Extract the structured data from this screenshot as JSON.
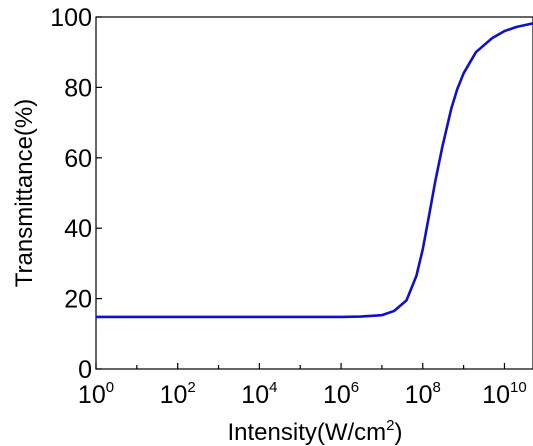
{
  "chart_data": {
    "type": "line",
    "title": "",
    "xlabel": "Intensity(W/cm",
    "xlabel_sup": "2",
    "xlabel_tail": ")",
    "ylabel": "Transmittance(%)",
    "x_scale": "log10",
    "xlim": [
      1,
      50000000000
    ],
    "ylim": [
      0,
      100
    ],
    "x_ticks": [
      {
        "value": 1,
        "base": "10",
        "exp": "0"
      },
      {
        "value": 100,
        "base": "10",
        "exp": "2"
      },
      {
        "value": 10000,
        "base": "10",
        "exp": "4"
      },
      {
        "value": 1000000,
        "base": "10",
        "exp": "6"
      },
      {
        "value": 100000000,
        "base": "10",
        "exp": "8"
      },
      {
        "value": 10000000000,
        "base": "10",
        "exp": "10"
      }
    ],
    "y_ticks": [
      "0",
      "20",
      "40",
      "60",
      "80",
      "100"
    ],
    "grid": false,
    "legend": "none",
    "series": [
      {
        "color": "#1010cc",
        "x": [
          1,
          10,
          100,
          1000,
          10000,
          100000,
          1000000,
          3000000,
          10000000,
          20000000,
          40000000,
          70000000,
          100000000,
          150000000,
          200000000,
          300000000,
          500000000,
          700000000,
          1000000000,
          2000000000,
          5000000000,
          10000000000,
          20000000000,
          50000000000
        ],
        "y": [
          14.8,
          14.8,
          14.8,
          14.8,
          14.8,
          14.8,
          14.8,
          14.9,
          15.3,
          16.5,
          19.5,
          26.5,
          34,
          45,
          53,
          63,
          74,
          79.5,
          84,
          90,
          94,
          96,
          97.2,
          98.2
        ]
      }
    ]
  }
}
